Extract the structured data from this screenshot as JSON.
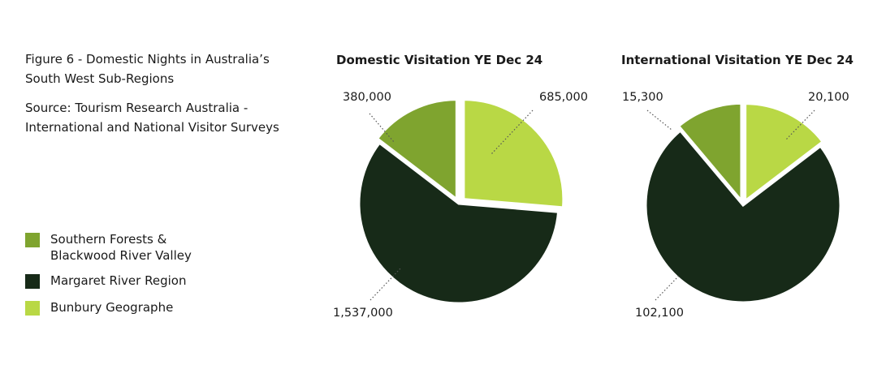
{
  "figure": {
    "caption_lines": [
      "Figure 6 - Domestic Nights in Australia’s",
      "South West Sub-Regions"
    ],
    "source_lines": [
      "Source:  Tourism Research Australia -",
      "International and National Visitor Surveys"
    ]
  },
  "legend": [
    {
      "label_lines": [
        "Southern Forests &",
        "Blackwood River Valley"
      ],
      "color": "#7fa42f"
    },
    {
      "label_lines": [
        "Margaret River Region"
      ],
      "color": "#172a18"
    },
    {
      "label_lines": [
        "Bunbury Geographe"
      ],
      "color": "#b9d845"
    }
  ],
  "chart_data": [
    {
      "type": "pie",
      "title": "Domestic Visitation YE Dec 24",
      "slices": [
        {
          "label": "Bunbury Geographe",
          "value": 685000,
          "display": "685,000",
          "color": "#b9d845"
        },
        {
          "label": "Margaret River Region",
          "value": 1537000,
          "display": "1,537,000",
          "color": "#172a18"
        },
        {
          "label": "Southern Forests & Blackwood River Valley",
          "value": 380000,
          "display": "380,000",
          "color": "#7fa42f"
        }
      ]
    },
    {
      "type": "pie",
      "title": "International Visitation YE Dec 24",
      "slices": [
        {
          "label": "Bunbury Geographe",
          "value": 20100,
          "display": "20,100",
          "color": "#b9d845"
        },
        {
          "label": "Margaret River Region",
          "value": 102100,
          "display": "102,100",
          "color": "#172a18"
        },
        {
          "label": "Southern Forests & Blackwood River Valley",
          "value": 15300,
          "display": "15,300",
          "color": "#7fa42f"
        }
      ]
    }
  ]
}
